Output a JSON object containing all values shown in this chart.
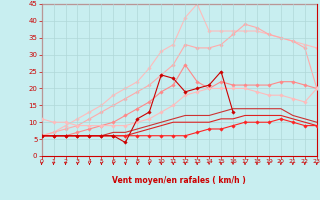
{
  "title": "",
  "xlabel": "Vent moyen/en rafales ( km/h )",
  "ylabel": "",
  "xlim": [
    0,
    23
  ],
  "ylim": [
    0,
    45
  ],
  "yticks": [
    0,
    5,
    10,
    15,
    20,
    25,
    30,
    35,
    40,
    45
  ],
  "xticks": [
    0,
    1,
    2,
    3,
    4,
    5,
    6,
    7,
    8,
    9,
    10,
    11,
    12,
    13,
    14,
    15,
    16,
    17,
    18,
    19,
    20,
    21,
    22,
    23
  ],
  "bg_color": "#c8eef0",
  "grid_color": "#b0d8d8",
  "xlabel_color": "#cc0000",
  "tick_color": "#cc0000",
  "axis_color": "#cc0000",
  "lines": [
    {
      "x": [
        0,
        1,
        2,
        3,
        4,
        5,
        6,
        7,
        8,
        9,
        10,
        11,
        12,
        13,
        14,
        15,
        16,
        17,
        18,
        19,
        20,
        21,
        22,
        23
      ],
      "y": [
        6,
        7,
        9,
        11,
        13,
        15,
        18,
        20,
        22,
        26,
        31,
        33,
        41,
        45,
        37,
        37,
        37,
        37,
        37,
        36,
        35,
        34,
        33,
        32
      ],
      "color": "#ffbbbb",
      "marker": "D",
      "linewidth": 0.8,
      "markersize": 1.8,
      "zorder": 2
    },
    {
      "x": [
        0,
        1,
        2,
        3,
        4,
        5,
        6,
        7,
        8,
        9,
        10,
        11,
        12,
        13,
        14,
        15,
        16,
        17,
        18,
        19,
        20,
        21,
        22,
        23
      ],
      "y": [
        6,
        7,
        8,
        9,
        11,
        13,
        15,
        17,
        19,
        21,
        24,
        27,
        33,
        32,
        32,
        33,
        36,
        39,
        38,
        36,
        35,
        34,
        32,
        20
      ],
      "color": "#ffaaaa",
      "marker": "D",
      "linewidth": 0.8,
      "markersize": 1.8,
      "zorder": 2
    },
    {
      "x": [
        0,
        1,
        2,
        3,
        4,
        5,
        6,
        7,
        8,
        9,
        10,
        11,
        12,
        13,
        14,
        15,
        16,
        17,
        18,
        19,
        20,
        21,
        22,
        23
      ],
      "y": [
        6,
        6,
        6,
        7,
        8,
        9,
        10,
        12,
        14,
        16,
        19,
        21,
        27,
        22,
        20,
        22,
        21,
        21,
        21,
        21,
        22,
        22,
        21,
        20
      ],
      "color": "#ff8888",
      "marker": "D",
      "linewidth": 0.8,
      "markersize": 1.8,
      "zorder": 3
    },
    {
      "x": [
        0,
        1,
        2,
        3,
        4,
        5,
        6,
        7,
        8,
        9,
        10,
        11,
        12,
        13,
        14,
        15,
        16,
        17,
        18,
        19,
        20,
        21,
        22,
        23
      ],
      "y": [
        11,
        10,
        10,
        9,
        9,
        9,
        9,
        9,
        10,
        11,
        13,
        15,
        18,
        19,
        20,
        20,
        20,
        20,
        19,
        18,
        18,
        17,
        16,
        20
      ],
      "color": "#ffbbbb",
      "marker": "D",
      "linewidth": 0.8,
      "markersize": 1.8,
      "zorder": 3
    },
    {
      "x": [
        0,
        1,
        2,
        3,
        4,
        5,
        6,
        7,
        8,
        9,
        10,
        11,
        12,
        13,
        14,
        15,
        16,
        17,
        18,
        19,
        20,
        21,
        22,
        23
      ],
      "y": [
        6,
        6,
        6,
        6,
        6,
        6,
        7,
        7,
        8,
        9,
        10,
        11,
        12,
        12,
        12,
        13,
        14,
        14,
        14,
        14,
        14,
        12,
        11,
        10
      ],
      "color": "#cc3333",
      "marker": null,
      "linewidth": 0.8,
      "markersize": 0,
      "zorder": 4
    },
    {
      "x": [
        0,
        1,
        2,
        3,
        4,
        5,
        6,
        7,
        8,
        9,
        10,
        11,
        12,
        13,
        14,
        15,
        16,
        17,
        18,
        19,
        20,
        21,
        22,
        23
      ],
      "y": [
        6,
        6,
        6,
        6,
        6,
        6,
        6,
        6,
        7,
        8,
        9,
        10,
        10,
        10,
        10,
        11,
        11,
        12,
        12,
        12,
        12,
        11,
        10,
        9
      ],
      "color": "#dd2222",
      "marker": null,
      "linewidth": 0.8,
      "markersize": 0,
      "zorder": 4
    },
    {
      "x": [
        0,
        1,
        2,
        3,
        4,
        5,
        6,
        7,
        8,
        9,
        10,
        11,
        12,
        13,
        14,
        15,
        16,
        17,
        18,
        19,
        20,
        21,
        22,
        23
      ],
      "y": [
        6,
        6,
        6,
        6,
        6,
        6,
        6,
        6,
        6,
        6,
        6,
        6,
        6,
        7,
        8,
        8,
        9,
        10,
        10,
        10,
        11,
        10,
        9,
        9
      ],
      "color": "#ff2222",
      "marker": "D",
      "linewidth": 0.8,
      "markersize": 1.8,
      "zorder": 5
    },
    {
      "x": [
        0,
        1,
        2,
        3,
        4,
        5,
        6,
        7,
        8,
        9,
        10,
        11,
        12,
        13,
        14,
        15,
        16,
        17,
        18,
        19,
        20,
        21,
        22,
        23
      ],
      "y": [
        6,
        6,
        6,
        6,
        6,
        6,
        6,
        4,
        11,
        13,
        24,
        23,
        19,
        20,
        21,
        25,
        13,
        null,
        null,
        null,
        null,
        null,
        null,
        null
      ],
      "color": "#cc0000",
      "marker": "D",
      "linewidth": 0.8,
      "markersize": 1.8,
      "zorder": 6
    }
  ]
}
